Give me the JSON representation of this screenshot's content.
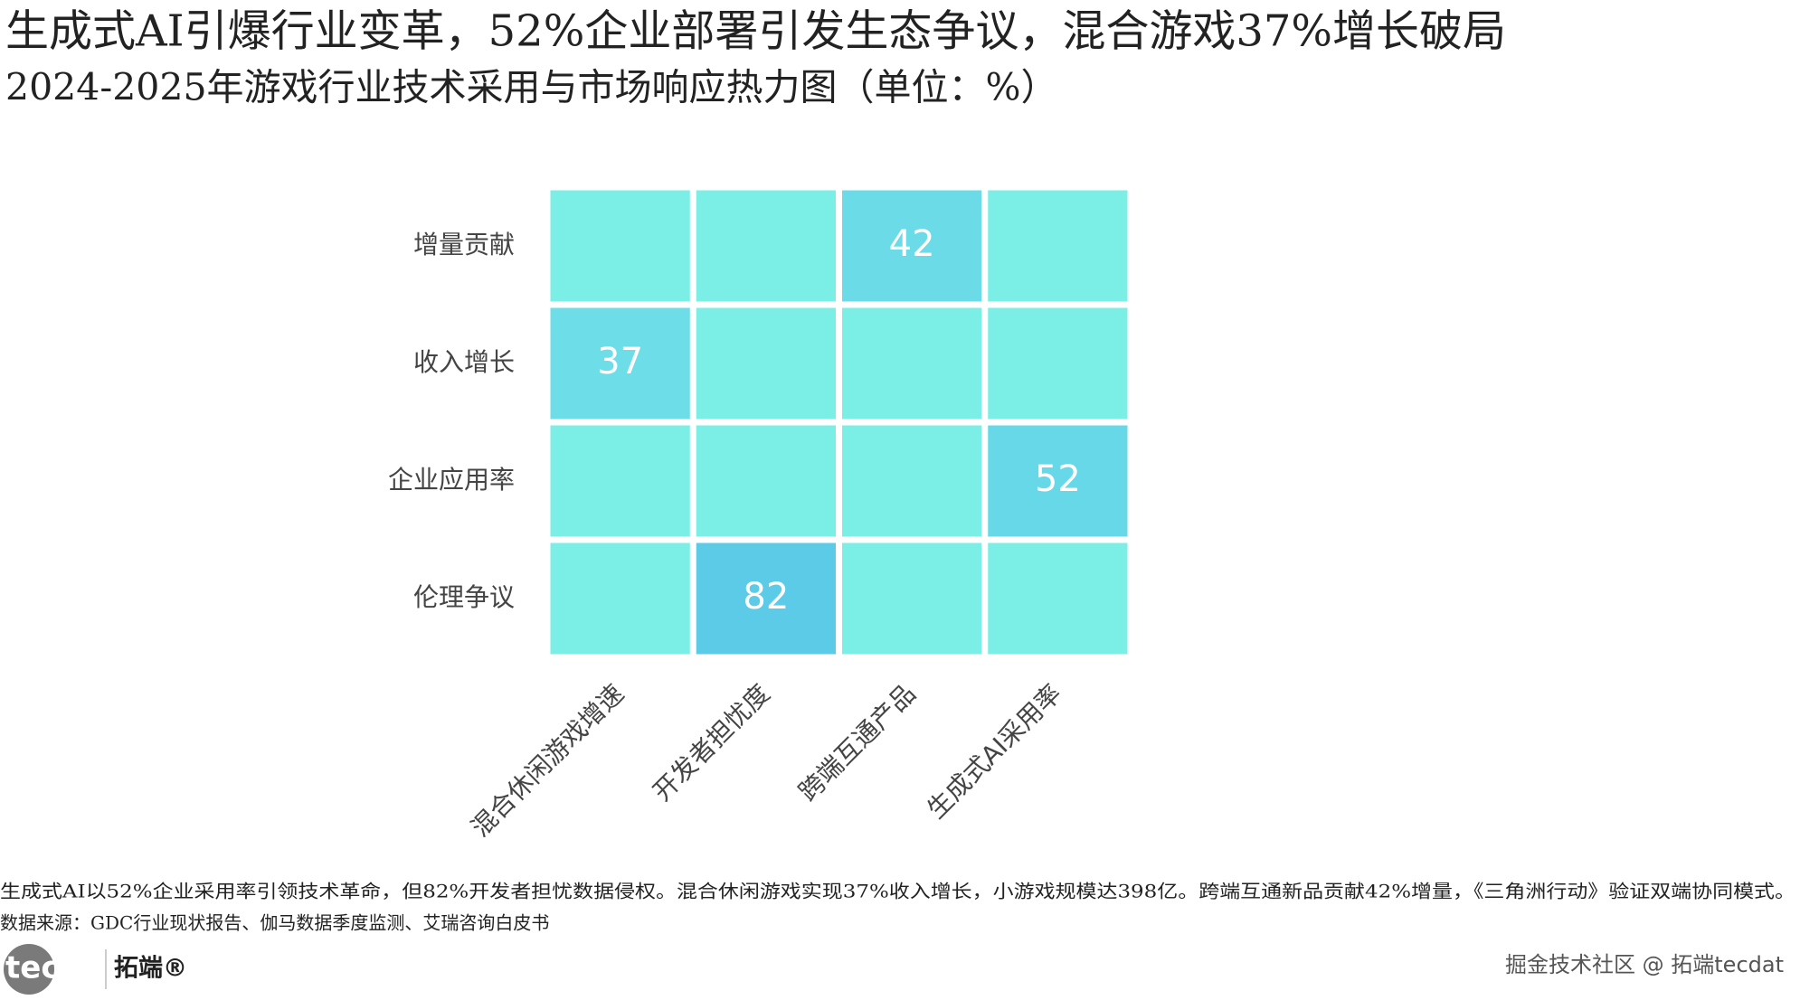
{
  "chart_data": {
    "type": "heatmap",
    "title": "生成式AI引爆行业变革，52%企业部署引发生态争议，混合游戏37%增长破局",
    "subtitle": "2024-2025年游戏行业技术采用与市场响应热力图（单位：%）",
    "x": [
      "混合休闲游戏增速",
      "开发者担忧度",
      "跨端互通产品",
      "生成式AI采用率"
    ],
    "categories": [
      "增量贡献",
      "收入增长",
      "企业应用率",
      "伦理争议"
    ],
    "values": [
      [
        null,
        null,
        42,
        null
      ],
      [
        37,
        null,
        null,
        null
      ],
      [
        null,
        null,
        null,
        52
      ],
      [
        null,
        82,
        null,
        null
      ]
    ],
    "empty_color": "#7beee6",
    "colorscale": [
      "#7beee6",
      "#5ccbe8"
    ],
    "note": "生成式AI以52%企业采用率引领技术革命，但82%开发者担忧数据侵权。混合休闲游戏实现37%收入增长，小游戏规模达398亿。跨端互通新品贡献42%增量，《三角洲行动》验证双端协同模式。",
    "source": "数据来源：GDC行业现状报告、伽马数据季度监测、艾瑞咨询白皮书"
  },
  "branding": {
    "logo": "tecdat",
    "brand": "拓端®",
    "watermark": "掘金技术社区 @ 拓端tecdat"
  }
}
